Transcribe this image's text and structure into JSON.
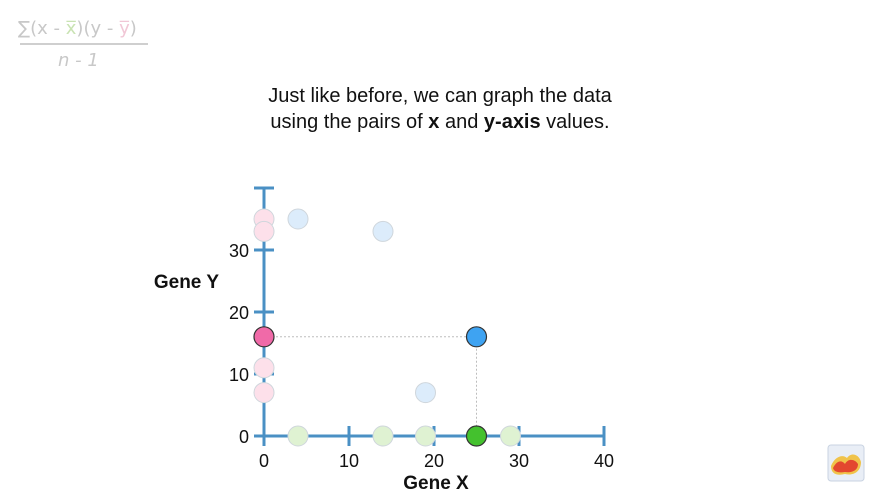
{
  "formula": {
    "sum": "∑",
    "part1": "(x - ",
    "xbar": "x̅",
    "part2": ")(y - ",
    "ybar": "y̅",
    "part3": ")",
    "denominator": "n - 1"
  },
  "caption": {
    "line1": "Just like before, we can graph the data",
    "line2_pre": "using the pairs of ",
    "line2_x": "x",
    "line2_mid": " and ",
    "line2_y": "y-axis",
    "line2_post": " values."
  },
  "chart_data": {
    "type": "scatter",
    "xlabel": "Gene X",
    "ylabel": "Gene Y",
    "xlim": [
      0,
      40
    ],
    "ylim": [
      0,
      40
    ],
    "xticks": [
      0,
      10,
      20,
      30,
      40
    ],
    "yticks": [
      0,
      10,
      20,
      30
    ],
    "grid": false,
    "series": [
      {
        "role": "x-axis projections",
        "color": "#dff2d2",
        "x": [
          4,
          14,
          19,
          29
        ],
        "y": [
          0,
          0,
          0,
          0
        ]
      },
      {
        "role": "x-axis projection (highlighted)",
        "color": "#44c12e",
        "x": [
          25
        ],
        "y": [
          0
        ]
      },
      {
        "role": "y-axis projections",
        "color": "#fde0ea",
        "x": [
          0,
          0,
          0,
          0
        ],
        "y": [
          35,
          33,
          11,
          7
        ]
      },
      {
        "role": "y-axis projection (highlighted)",
        "color": "#f06aa8",
        "x": [
          0
        ],
        "y": [
          16
        ]
      },
      {
        "role": "data points",
        "color": "#dcecfb",
        "x": [
          4,
          14,
          19
        ],
        "y": [
          35,
          33,
          7
        ]
      },
      {
        "role": "data point (highlighted)",
        "color": "#3ea3f2",
        "x": [
          25
        ],
        "y": [
          16
        ]
      }
    ],
    "guides": {
      "x": 25,
      "y": 16
    },
    "axis_color": "#4a90c4"
  }
}
